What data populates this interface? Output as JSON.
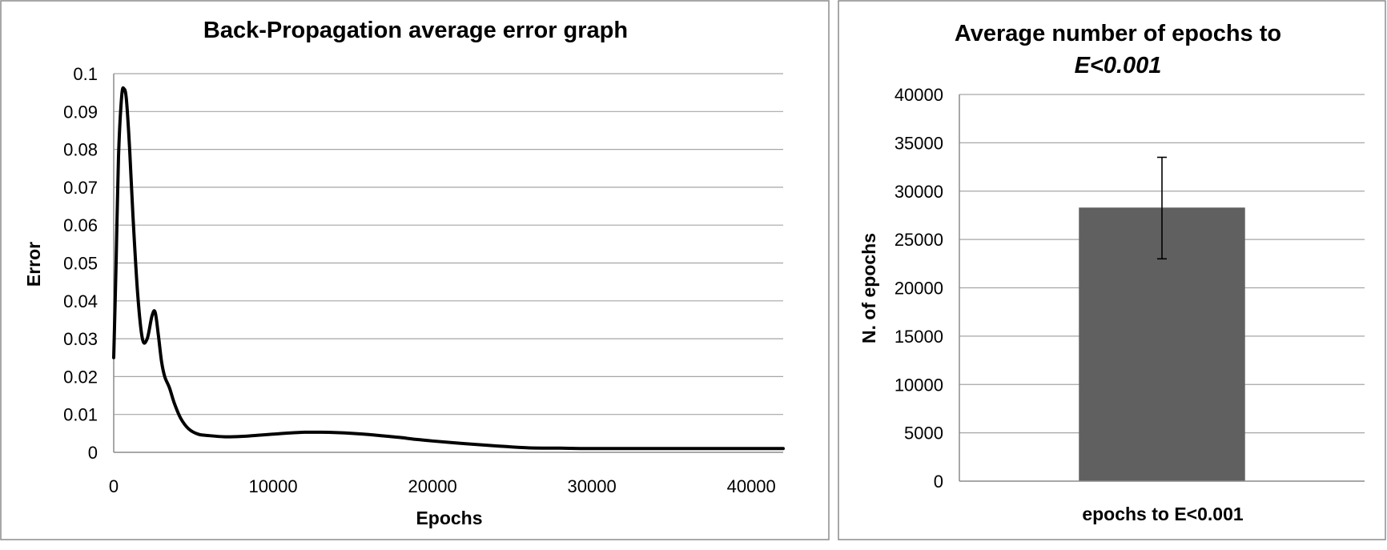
{
  "chart_data": [
    {
      "type": "line",
      "title": "Back-Propagation average error graph",
      "xlabel": "Epochs",
      "ylabel": "Error",
      "xlim": [
        0,
        42000
      ],
      "ylim": [
        0,
        0.1
      ],
      "xticks": [
        0,
        10000,
        20000,
        30000,
        40000
      ],
      "xtick_labels": [
        "0",
        "10000",
        "20000",
        "30000",
        "40000"
      ],
      "yticks": [
        0,
        0.01,
        0.02,
        0.03,
        0.04,
        0.05,
        0.06,
        0.07,
        0.08,
        0.09,
        0.1
      ],
      "ytick_labels": [
        "0",
        "0.01",
        "0.02",
        "0.03",
        "0.04",
        "0.05",
        "0.06",
        "0.07",
        "0.08",
        "0.09",
        "0.1"
      ],
      "grid": true,
      "line_color": "#000000",
      "series": [
        {
          "x": [
            0,
            150,
            300,
            500,
            650,
            800,
            1000,
            1200,
            1500,
            1800,
            2100,
            2400,
            2600,
            2800,
            3000,
            3200,
            3500,
            3800,
            4200,
            4700,
            5300,
            6000,
            7000,
            8000,
            9000,
            10000,
            11000,
            12000,
            13000,
            14000,
            15000,
            16000,
            17000,
            18000,
            19000,
            20000,
            22000,
            24000,
            26000,
            28000,
            30000,
            35000,
            40000,
            42000
          ],
          "y": [
            0.025,
            0.05,
            0.078,
            0.094,
            0.096,
            0.093,
            0.08,
            0.063,
            0.042,
            0.03,
            0.03,
            0.036,
            0.037,
            0.031,
            0.024,
            0.02,
            0.017,
            0.013,
            0.009,
            0.0062,
            0.0048,
            0.0044,
            0.0041,
            0.0042,
            0.0045,
            0.0048,
            0.0051,
            0.0053,
            0.0053,
            0.0052,
            0.005,
            0.0047,
            0.0043,
            0.0039,
            0.0034,
            0.003,
            0.0023,
            0.0017,
            0.0012,
            0.0011,
            0.001,
            0.001,
            0.001,
            0.001
          ]
        }
      ]
    },
    {
      "type": "bar",
      "title_line1": "Average number of epochs to",
      "title_line2": "E<0.001",
      "xlabel": "epochs to E<0.001",
      "ylabel": "N. of epochs",
      "ylim": [
        0,
        40000
      ],
      "yticks": [
        0,
        5000,
        10000,
        15000,
        20000,
        25000,
        30000,
        35000,
        40000
      ],
      "ytick_labels": [
        "0",
        "5000",
        "10000",
        "15000",
        "20000",
        "25000",
        "30000",
        "35000",
        "40000"
      ],
      "grid": true,
      "bar_color": "#606060",
      "categories": [
        "epochs to E<0.001"
      ],
      "values": [
        28300
      ],
      "error_bars": [
        {
          "low": 23000,
          "high": 33500
        }
      ]
    }
  ]
}
